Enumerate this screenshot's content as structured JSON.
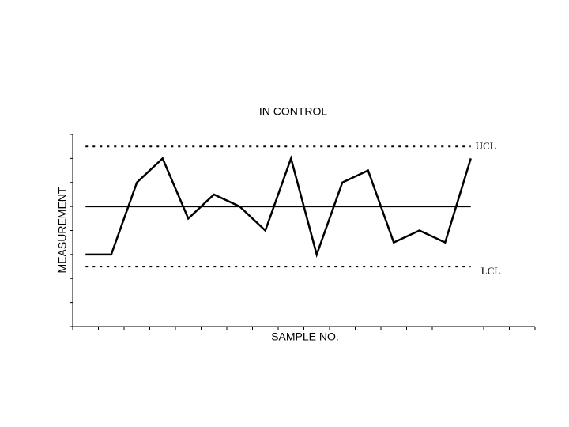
{
  "chart_data": {
    "type": "line",
    "title": "IN CONTROL",
    "xlabel": "SAMPLE NO.",
    "ylabel": "MEASUREMENT",
    "x": [
      1,
      2,
      3,
      4,
      5,
      6,
      7,
      8,
      9,
      10,
      11,
      12,
      13,
      14,
      15,
      16
    ],
    "series": [
      {
        "color": "#000000",
        "values": [
          3,
          3,
          6,
          7,
          4.5,
          5.5,
          5,
          4,
          7,
          3,
          6,
          6.5,
          3.5,
          4,
          3.5,
          7
        ]
      }
    ],
    "xlim": [
      0.5,
      18.5
    ],
    "xticks": [
      0.5,
      1.5,
      2.5,
      3.5,
      4.5,
      5.5,
      6.5,
      7.5,
      8.5,
      9.5,
      10.5,
      11.5,
      12.5,
      13.5,
      14.5,
      15.5,
      16.5,
      17.5,
      18.5
    ],
    "ylim": [
      0,
      8
    ],
    "yticks": [
      0,
      1,
      2,
      3,
      4,
      5,
      6,
      7,
      8
    ],
    "control_limits": {
      "upper": {
        "label": "UCL",
        "value": 7.5
      },
      "center": 5,
      "lower": {
        "label": "LCL",
        "value": 2.5
      }
    }
  }
}
